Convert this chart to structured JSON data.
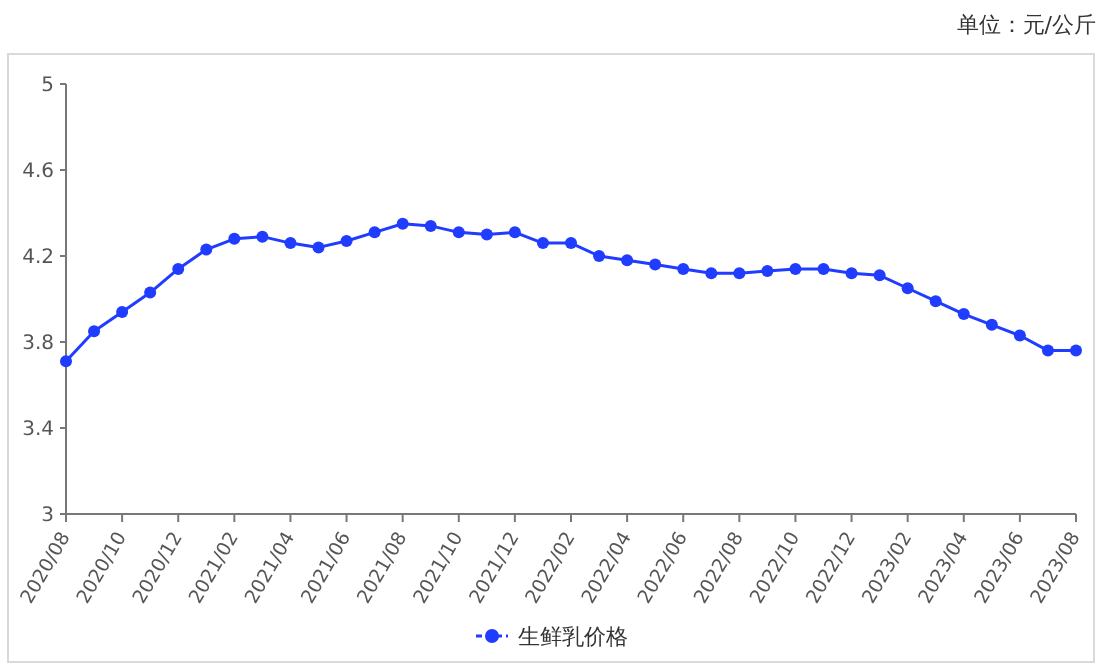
{
  "chart_data": {
    "type": "line",
    "annotations": [
      "单位：元/公斤"
    ],
    "categories": [
      "2020/08",
      null,
      "2020/10",
      null,
      "2020/12",
      null,
      "2021/02",
      null,
      "2021/04",
      null,
      "2021/06",
      null,
      "2021/08",
      null,
      "2021/10",
      null,
      "2021/12",
      null,
      "2022/02",
      null,
      "2022/04",
      null,
      "2022/06",
      null,
      "2022/08",
      null,
      "2022/10",
      null,
      "2022/12",
      null,
      "2023/02",
      null,
      "2023/04",
      null,
      "2023/06",
      null,
      "2023/08"
    ],
    "series": [
      {
        "name": "生鲜乳价格",
        "color": "#1f3cff",
        "values": [
          3.71,
          3.85,
          3.94,
          4.03,
          4.14,
          4.23,
          4.28,
          4.29,
          4.26,
          4.24,
          4.27,
          4.31,
          4.35,
          4.34,
          4.31,
          4.3,
          4.31,
          4.26,
          4.26,
          4.2,
          4.18,
          4.16,
          4.14,
          4.12,
          4.12,
          4.13,
          4.14,
          4.14,
          4.12,
          4.11,
          4.05,
          3.99,
          3.93,
          3.88,
          3.83,
          3.76,
          3.76
        ]
      }
    ],
    "ylim": [
      3,
      5
    ],
    "yticks": [
      3,
      3.4,
      3.8,
      4.2,
      4.6,
      5
    ],
    "marker": "circle",
    "legend": "bottom"
  }
}
